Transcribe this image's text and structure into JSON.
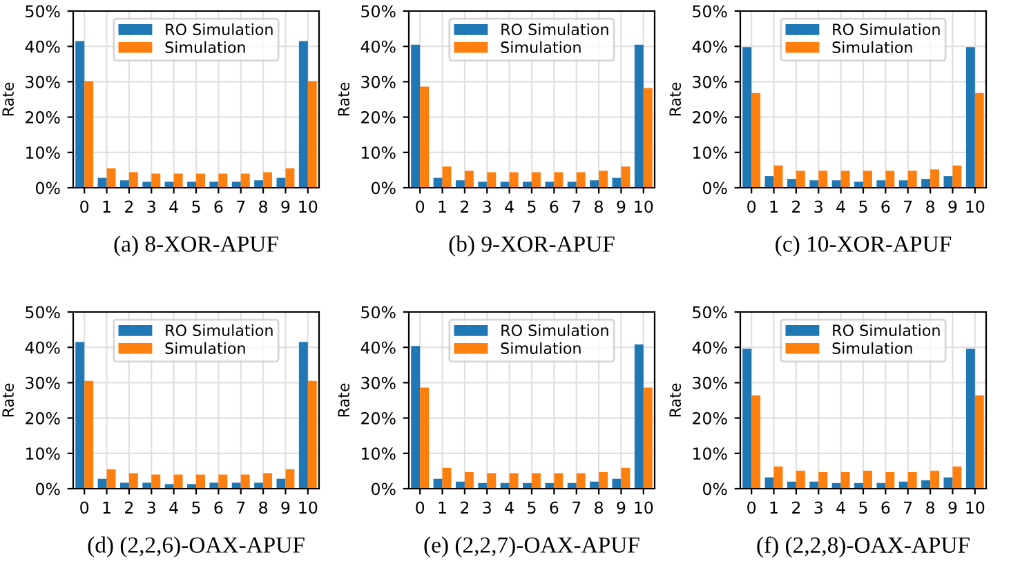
{
  "chart_data": [
    {
      "type": "bar",
      "title": "(a) 8-XOR-APUF",
      "ylabel": "Rate",
      "categories": [
        "0",
        "1",
        "2",
        "3",
        "4",
        "5",
        "6",
        "7",
        "8",
        "9",
        "10"
      ],
      "ylim": [
        0,
        50
      ],
      "yticks": [
        {
          "value": 0,
          "label": "0%"
        },
        {
          "value": 10,
          "label": "10%"
        },
        {
          "value": 20,
          "label": "20%"
        },
        {
          "value": 30,
          "label": "30%"
        },
        {
          "value": 40,
          "label": "40%"
        },
        {
          "value": 50,
          "label": "50%"
        }
      ],
      "grid": true,
      "legend": "top",
      "series": [
        {
          "name": "RO Simulation",
          "color": "#1f77b4",
          "values": [
            41.5,
            2.8,
            2.1,
            1.7,
            1.7,
            1.7,
            1.7,
            1.7,
            2.1,
            2.8,
            41.5
          ]
        },
        {
          "name": "Simulation",
          "color": "#ff7f0e",
          "values": [
            30.2,
            5.5,
            4.4,
            4.0,
            4.0,
            4.0,
            4.0,
            4.0,
            4.4,
            5.5,
            30.2
          ]
        }
      ]
    },
    {
      "type": "bar",
      "title": "(b) 9-XOR-APUF",
      "ylabel": "Rate",
      "categories": [
        "0",
        "1",
        "2",
        "3",
        "4",
        "5",
        "6",
        "7",
        "8",
        "9",
        "10"
      ],
      "ylim": [
        0,
        50
      ],
      "yticks": [
        {
          "value": 0,
          "label": "0%"
        },
        {
          "value": 10,
          "label": "10%"
        },
        {
          "value": 20,
          "label": "20%"
        },
        {
          "value": 30,
          "label": "30%"
        },
        {
          "value": 40,
          "label": "40%"
        },
        {
          "value": 50,
          "label": "50%"
        }
      ],
      "grid": true,
      "legend": "top",
      "series": [
        {
          "name": "RO Simulation",
          "color": "#1f77b4",
          "values": [
            40.5,
            2.8,
            2.1,
            1.7,
            1.7,
            1.7,
            1.7,
            1.7,
            2.1,
            2.8,
            40.5
          ]
        },
        {
          "name": "Simulation",
          "color": "#ff7f0e",
          "values": [
            28.6,
            6.0,
            4.8,
            4.4,
            4.4,
            4.4,
            4.4,
            4.4,
            4.8,
            6.0,
            28.2
          ]
        }
      ]
    },
    {
      "type": "bar",
      "title": "(c) 10-XOR-APUF",
      "ylabel": "Rate",
      "categories": [
        "0",
        "1",
        "2",
        "3",
        "4",
        "5",
        "6",
        "7",
        "8",
        "9",
        "10"
      ],
      "ylim": [
        0,
        50
      ],
      "yticks": [
        {
          "value": 0,
          "label": "0%"
        },
        {
          "value": 10,
          "label": "10%"
        },
        {
          "value": 20,
          "label": "20%"
        },
        {
          "value": 30,
          "label": "30%"
        },
        {
          "value": 40,
          "label": "40%"
        },
        {
          "value": 50,
          "label": "50%"
        }
      ],
      "grid": true,
      "legend": "top",
      "series": [
        {
          "name": "RO Simulation",
          "color": "#1f77b4",
          "values": [
            39.8,
            3.3,
            2.5,
            2.1,
            2.1,
            1.7,
            2.1,
            2.1,
            2.5,
            3.3,
            39.8
          ]
        },
        {
          "name": "Simulation",
          "color": "#ff7f0e",
          "values": [
            26.8,
            6.3,
            4.8,
            4.8,
            4.8,
            4.8,
            4.8,
            4.8,
            5.2,
            6.3,
            26.8
          ]
        }
      ]
    },
    {
      "type": "bar",
      "title": "(d) (2,2,6)-OAX-APUF",
      "ylabel": "Rate",
      "categories": [
        "0",
        "1",
        "2",
        "3",
        "4",
        "5",
        "6",
        "7",
        "8",
        "9",
        "10"
      ],
      "ylim": [
        0,
        50
      ],
      "yticks": [
        {
          "value": 0,
          "label": "0%"
        },
        {
          "value": 10,
          "label": "10%"
        },
        {
          "value": 20,
          "label": "20%"
        },
        {
          "value": 30,
          "label": "30%"
        },
        {
          "value": 40,
          "label": "40%"
        },
        {
          "value": 50,
          "label": "50%"
        }
      ],
      "grid": true,
      "legend": "top",
      "series": [
        {
          "name": "RO Simulation",
          "color": "#1f77b4",
          "values": [
            41.5,
            2.8,
            1.7,
            1.7,
            1.3,
            1.3,
            1.7,
            1.7,
            1.7,
            2.8,
            41.5
          ]
        },
        {
          "name": "Simulation",
          "color": "#ff7f0e",
          "values": [
            30.5,
            5.5,
            4.4,
            4.0,
            4.0,
            4.0,
            4.0,
            4.0,
            4.4,
            5.5,
            30.5
          ]
        }
      ]
    },
    {
      "type": "bar",
      "title": "(e) (2,2,7)-OAX-APUF",
      "ylabel": "Rate",
      "categories": [
        "0",
        "1",
        "2",
        "3",
        "4",
        "5",
        "6",
        "7",
        "8",
        "9",
        "10"
      ],
      "ylim": [
        0,
        50
      ],
      "yticks": [
        {
          "value": 0,
          "label": "0%"
        },
        {
          "value": 10,
          "label": "10%"
        },
        {
          "value": 20,
          "label": "20%"
        },
        {
          "value": 30,
          "label": "30%"
        },
        {
          "value": 40,
          "label": "40%"
        },
        {
          "value": 50,
          "label": "50%"
        }
      ],
      "grid": true,
      "legend": "top",
      "series": [
        {
          "name": "RO Simulation",
          "color": "#1f77b4",
          "values": [
            40.4,
            2.8,
            2.0,
            1.6,
            1.6,
            1.6,
            1.6,
            1.6,
            2.0,
            2.8,
            40.8
          ]
        },
        {
          "name": "Simulation",
          "color": "#ff7f0e",
          "values": [
            28.6,
            5.9,
            4.7,
            4.4,
            4.4,
            4.4,
            4.4,
            4.4,
            4.7,
            5.9,
            28.6
          ]
        }
      ]
    },
    {
      "type": "bar",
      "title": "(f) (2,2,8)-OAX-APUF",
      "ylabel": "Rate",
      "categories": [
        "0",
        "1",
        "2",
        "3",
        "4",
        "5",
        "6",
        "7",
        "8",
        "9",
        "10"
      ],
      "ylim": [
        0,
        50
      ],
      "yticks": [
        {
          "value": 0,
          "label": "0%"
        },
        {
          "value": 10,
          "label": "10%"
        },
        {
          "value": 20,
          "label": "20%"
        },
        {
          "value": 30,
          "label": "30%"
        },
        {
          "value": 40,
          "label": "40%"
        },
        {
          "value": 50,
          "label": "50%"
        }
      ],
      "grid": true,
      "legend": "top",
      "series": [
        {
          "name": "RO Simulation",
          "color": "#1f77b4",
          "values": [
            39.6,
            3.2,
            2.0,
            2.0,
            1.6,
            1.6,
            1.6,
            2.0,
            2.4,
            3.2,
            39.6
          ]
        },
        {
          "name": "Simulation",
          "color": "#ff7f0e",
          "values": [
            26.4,
            6.3,
            5.1,
            4.7,
            4.7,
            5.1,
            4.7,
            4.7,
            5.1,
            6.3,
            26.4
          ]
        }
      ]
    }
  ]
}
